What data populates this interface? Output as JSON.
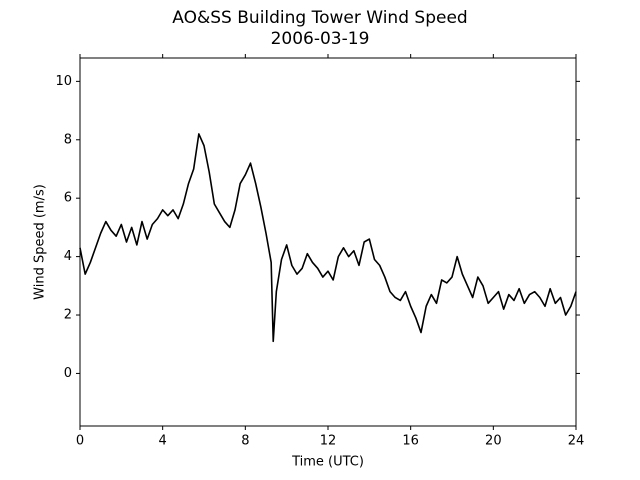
{
  "chart_data": {
    "type": "line",
    "title": "AO&SS Building Tower Wind Speed",
    "subtitle": "2006-03-19",
    "x_label": "Time (UTC)",
    "y_label": "Wind Speed (m/s)",
    "color": "#000000",
    "xlim": [
      0,
      24
    ],
    "xticks": [
      0,
      4,
      8,
      12,
      16,
      20,
      24
    ],
    "ylim": [
      -1.8,
      10.8
    ],
    "yticks": [
      0,
      2,
      4,
      6,
      8,
      10
    ],
    "x": [
      0,
      0.25,
      0.5,
      0.75,
      1,
      1.25,
      1.5,
      1.75,
      2,
      2.25,
      2.5,
      2.75,
      3,
      3.25,
      3.5,
      3.75,
      4,
      4.25,
      4.5,
      4.75,
      5,
      5.25,
      5.5,
      5.75,
      6,
      6.25,
      6.5,
      6.75,
      7,
      7.25,
      7.5,
      7.75,
      8,
      8.25,
      8.5,
      8.75,
      9,
      9.25,
      9.35,
      9.5,
      9.75,
      10,
      10.25,
      10.5,
      10.75,
      11,
      11.25,
      11.5,
      11.75,
      12,
      12.25,
      12.5,
      12.75,
      13,
      13.25,
      13.5,
      13.75,
      14,
      14.25,
      14.5,
      14.75,
      15,
      15.25,
      15.5,
      15.75,
      16,
      16.25,
      16.5,
      16.75,
      17,
      17.25,
      17.5,
      17.75,
      18,
      18.25,
      18.5,
      18.75,
      19,
      19.25,
      19.5,
      19.75,
      20,
      20.25,
      20.5,
      20.75,
      21,
      21.25,
      21.5,
      21.75,
      22,
      22.25,
      22.5,
      22.75,
      23,
      23.25,
      23.5,
      23.75,
      24
    ],
    "values": [
      4.3,
      3.4,
      3.8,
      4.3,
      4.8,
      5.2,
      4.9,
      4.7,
      5.1,
      4.5,
      5.0,
      4.4,
      5.2,
      4.6,
      5.1,
      5.3,
      5.6,
      5.4,
      5.6,
      5.3,
      5.8,
      6.5,
      7.0,
      8.2,
      7.8,
      6.9,
      5.8,
      5.5,
      5.2,
      5.0,
      5.6,
      6.5,
      6.8,
      7.2,
      6.5,
      5.7,
      4.8,
      3.8,
      1.1,
      2.8,
      3.9,
      4.4,
      3.7,
      3.4,
      3.6,
      4.1,
      3.8,
      3.6,
      3.3,
      3.5,
      3.2,
      4.0,
      4.3,
      4.0,
      4.2,
      3.7,
      4.5,
      4.6,
      3.9,
      3.7,
      3.3,
      2.8,
      2.6,
      2.5,
      2.8,
      2.3,
      1.9,
      1.4,
      2.3,
      2.7,
      2.4,
      3.2,
      3.1,
      3.3,
      4.0,
      3.4,
      3.0,
      2.6,
      3.3,
      3.0,
      2.4,
      2.6,
      2.8,
      2.2,
      2.7,
      2.5,
      2.9,
      2.4,
      2.7,
      2.8,
      2.6,
      2.3,
      2.9,
      2.4,
      2.6,
      2.0,
      2.3,
      2.8
    ]
  }
}
